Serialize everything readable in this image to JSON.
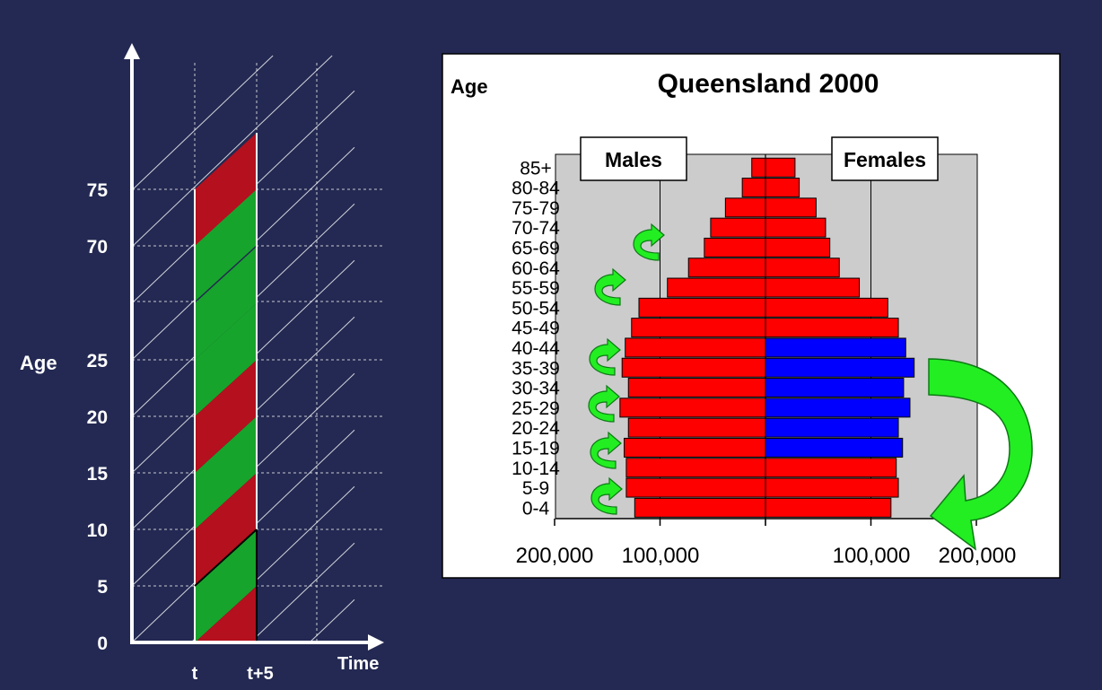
{
  "lexis": {
    "y_axis_label": "Age",
    "x_axis_label": "Time",
    "y_ticks": [
      "0",
      "5",
      "10",
      "15",
      "20",
      "25",
      "70",
      "75"
    ],
    "x_ticks": [
      "t",
      "t+5"
    ],
    "band_colors": {
      "red": "#b5101e",
      "green": "#17a42c"
    }
  },
  "chart_data": {
    "type": "bar",
    "title": "Queensland 2000",
    "ylabel": "Age",
    "legend": [
      "Males",
      "Females"
    ],
    "x_tick_labels": [
      "200,000",
      "100,000",
      "100,000",
      "200,000"
    ],
    "xlim": [
      -200000,
      200000
    ],
    "categories": [
      "0-4",
      "5-9",
      "10-14",
      "15-19",
      "20-24",
      "25-29",
      "30-34",
      "35-39",
      "40-44",
      "45-49",
      "50-54",
      "55-59",
      "60-64",
      "65-69",
      "70-74",
      "75-79",
      "80-84",
      "85+"
    ],
    "series": [
      {
        "name": "Males",
        "values": [
          124000,
          132000,
          132000,
          134000,
          130000,
          138000,
          130000,
          136000,
          133000,
          127000,
          120000,
          93000,
          73000,
          58000,
          52000,
          38000,
          22000,
          13000
        ]
      },
      {
        "name": "Females",
        "values": [
          119000,
          126000,
          124000,
          130000,
          126000,
          137000,
          131000,
          141000,
          133000,
          126000,
          116000,
          89000,
          70000,
          61000,
          57000,
          48000,
          32000,
          28000
        ]
      }
    ],
    "highlight_age_groups": [
      "15-19",
      "20-24",
      "25-29",
      "30-34",
      "35-39",
      "40-44"
    ],
    "colors": {
      "bar": "#ff0000",
      "highlight": "#0000ff",
      "plot_bg": "#cccccc",
      "arrow": "#22ee22"
    }
  }
}
